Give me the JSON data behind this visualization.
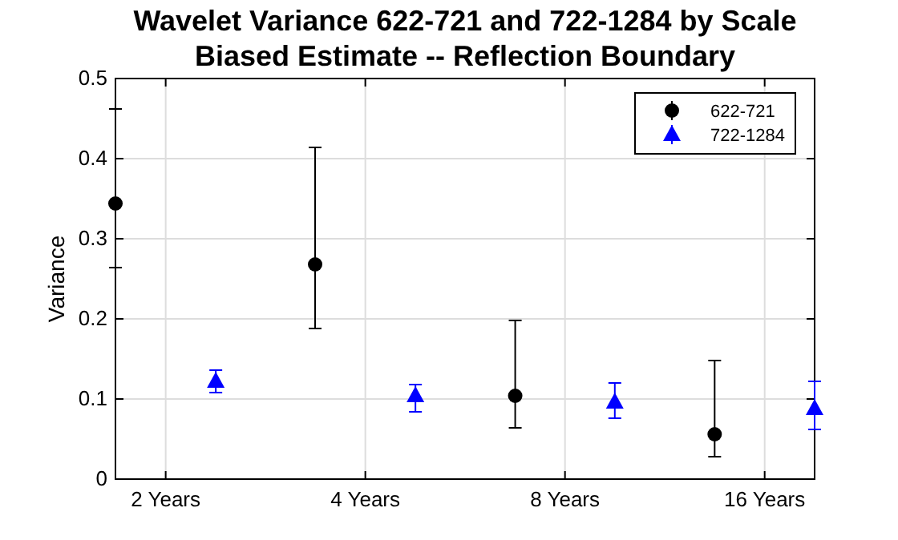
{
  "chart_data": {
    "type": "scatter",
    "title": "Wavelet Variance 622-721 and 722-1284 by Scale\nBiased Estimate -- Reflection Boundary",
    "ylabel": "Variance",
    "log": "x",
    "xlim": [
      1.68,
      19.03
    ],
    "xticks": [
      {
        "value": 2,
        "label": "2 Years"
      },
      {
        "value": 4,
        "label": "4 Years"
      },
      {
        "value": 8,
        "label": "8 Years"
      },
      {
        "value": 16,
        "label": "16 Years"
      }
    ],
    "ylim": [
      0,
      0.5
    ],
    "yticks": [
      0,
      0.1,
      0.2,
      0.3,
      0.4,
      0.5
    ],
    "grid": true,
    "legend": "top right",
    "series": [
      {
        "name": "622-721",
        "color": "#000000",
        "marker": "circle",
        "x": [
          1.68,
          3.36,
          6.73,
          13.45
        ],
        "values": [
          0.344,
          0.268,
          0.104,
          0.056
        ],
        "errors": [
          [
            0.264,
            0.462
          ],
          [
            0.188,
            0.414
          ],
          [
            0.064,
            0.198
          ],
          [
            0.028,
            0.148
          ]
        ]
      },
      {
        "name": "722-1284",
        "color": "#0000ff",
        "marker": "triangle",
        "x": [
          2.38,
          4.76,
          9.51,
          19.03
        ],
        "values": [
          0.122,
          0.104,
          0.096,
          0.088
        ],
        "errors": [
          [
            0.108,
            0.136
          ],
          [
            0.084,
            0.118
          ],
          [
            0.076,
            0.12
          ],
          [
            0.062,
            0.122
          ]
        ]
      }
    ]
  }
}
